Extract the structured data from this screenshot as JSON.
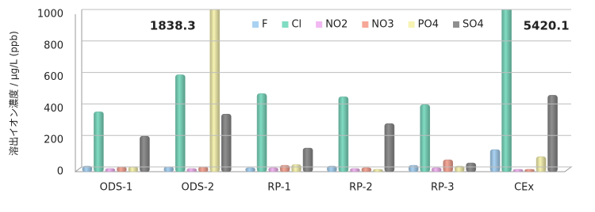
{
  "chart_data": {
    "type": "bar",
    "ylabel": "溶出イオン濃度 / μg/L (ppb)",
    "categories": [
      "ODS-1",
      "ODS-2",
      "RP-1",
      "RP-2",
      "RP-3",
      "CEx"
    ],
    "series": [
      {
        "name": "F",
        "color": "#a9d2f2",
        "values": [
          20,
          15,
          10,
          20,
          25,
          125
        ]
      },
      {
        "name": "Cl",
        "color": "#80dcc2",
        "values": [
          365,
          600,
          480,
          460,
          410,
          5420.1
        ],
        "value_labels": [
          null,
          null,
          null,
          null,
          null,
          "5420.1"
        ]
      },
      {
        "name": "NO2",
        "color": "#f2b8f2",
        "values": [
          5,
          5,
          10,
          5,
          10,
          0
        ]
      },
      {
        "name": "NO3",
        "color": "#f6a898",
        "values": [
          15,
          15,
          25,
          10,
          60,
          0
        ]
      },
      {
        "name": "PO4",
        "color": "#f7f3b2",
        "values": [
          15,
          1838.3,
          30,
          0,
          20,
          80
        ],
        "value_labels": [
          null,
          "1838.3",
          null,
          null,
          null,
          null
        ]
      },
      {
        "name": "SO4",
        "color": "#8f8f8f",
        "values": [
          210,
          350,
          135,
          290,
          40,
          470
        ]
      }
    ],
    "ylim": [
      0,
      1000
    ],
    "yticks": [
      0,
      200,
      400,
      600,
      800,
      1000
    ],
    "grid": true,
    "legend": "top"
  }
}
